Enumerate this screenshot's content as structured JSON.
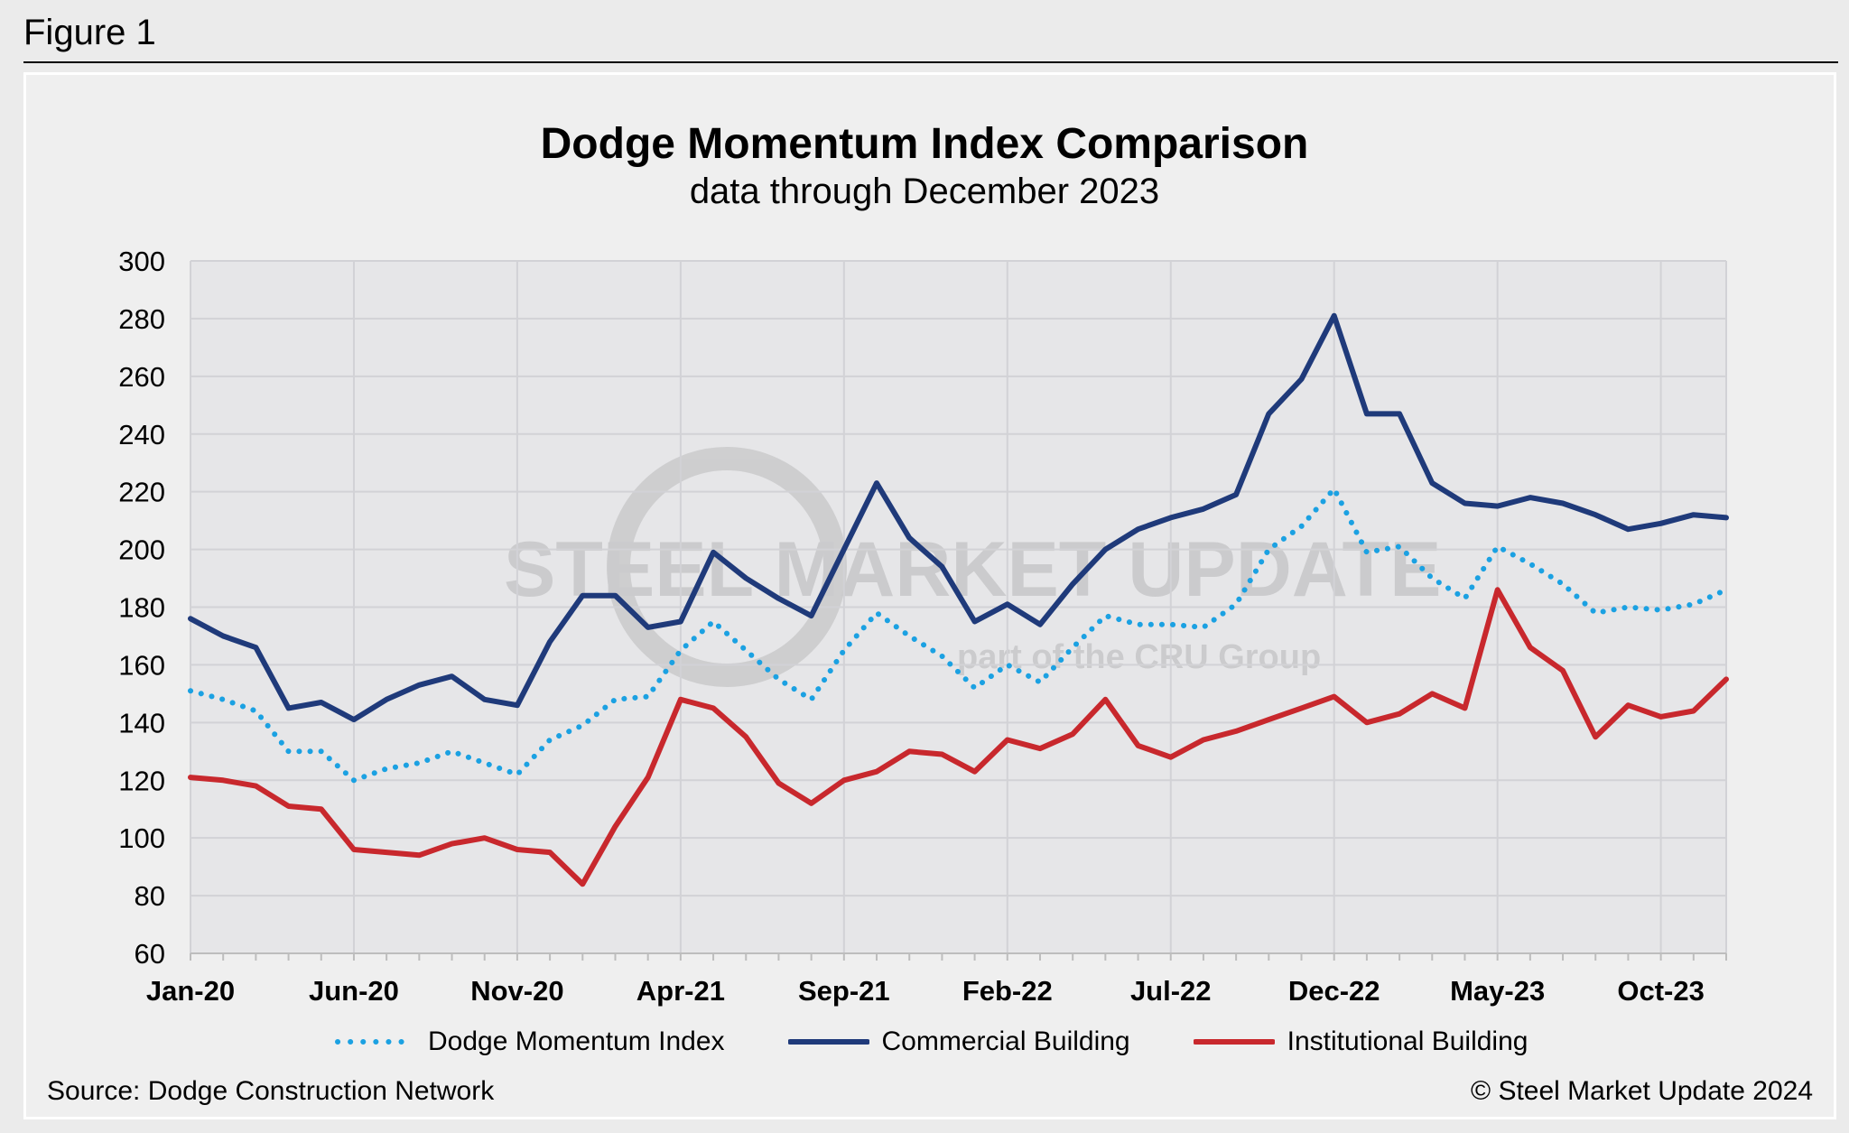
{
  "figure_label": "Figure 1",
  "source": "Source: Dodge Construction Network",
  "copyright": "© Steel Market Update 2024",
  "watermark": {
    "line1": "STEEL MARKET UPDATE",
    "line2": "part of the CRU Group"
  },
  "chart_data": {
    "type": "line",
    "title": "Dodge Momentum Index Comparison",
    "subtitle": "data through December 2023",
    "xlabel": "",
    "ylabel": "",
    "ylim": [
      60,
      300
    ],
    "yticks": [
      60,
      80,
      100,
      120,
      140,
      160,
      180,
      200,
      220,
      240,
      260,
      280,
      300
    ],
    "x_tick_labels": [
      "Jan-20",
      "Jun-20",
      "Nov-20",
      "Apr-21",
      "Sep-21",
      "Feb-22",
      "Jul-22",
      "Dec-22",
      "May-23",
      "Oct-23"
    ],
    "x_tick_every": 5,
    "grid": true,
    "legend_position": "bottom",
    "series": [
      {
        "name": "Dodge Momentum Index",
        "color": "#1ba1e2",
        "style": "dotted",
        "values": [
          151,
          148,
          144,
          130,
          130,
          120,
          124,
          126,
          130,
          126,
          122,
          134,
          139,
          148,
          149,
          165,
          175,
          165,
          155,
          148,
          165,
          178,
          170,
          163,
          152,
          160,
          154,
          166,
          177,
          174,
          174,
          173,
          181,
          200,
          208,
          221,
          199,
          201,
          190,
          183,
          201,
          195,
          188,
          178,
          180,
          179,
          181,
          186
        ]
      },
      {
        "name": "Commercial Building",
        "color": "#1f3a7a",
        "style": "solid",
        "values": [
          176,
          170,
          166,
          145,
          147,
          141,
          148,
          153,
          156,
          148,
          146,
          168,
          184,
          184,
          173,
          175,
          199,
          190,
          183,
          177,
          200,
          223,
          204,
          194,
          175,
          181,
          174,
          188,
          200,
          207,
          211,
          214,
          219,
          247,
          259,
          281,
          247,
          247,
          223,
          216,
          215,
          218,
          216,
          212,
          207,
          209,
          212,
          211
        ]
      },
      {
        "name": "Institutional Building",
        "color": "#c8282d",
        "style": "solid",
        "values": [
          121,
          120,
          118,
          111,
          110,
          96,
          95,
          94,
          98,
          100,
          96,
          95,
          84,
          104,
          121,
          148,
          145,
          135,
          119,
          112,
          120,
          123,
          130,
          129,
          123,
          134,
          131,
          136,
          148,
          132,
          128,
          134,
          137,
          141,
          145,
          149,
          140,
          143,
          150,
          145,
          186,
          166,
          158,
          135,
          146,
          142,
          144,
          155
        ]
      }
    ]
  }
}
